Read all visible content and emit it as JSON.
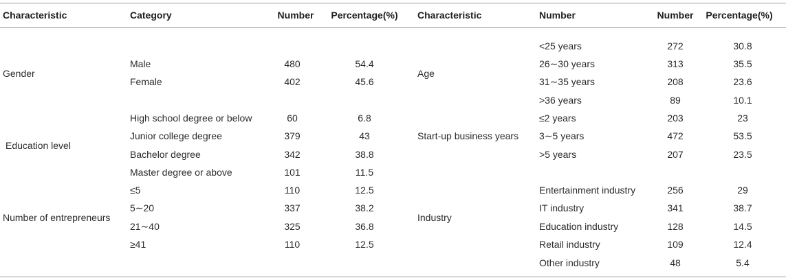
{
  "headers": {
    "left_characteristic": "Characteristic",
    "left_category": "Category",
    "left_number": "Number",
    "left_percentage": "Percentage(%)",
    "right_characteristic": "Characteristic",
    "right_category": "Number",
    "right_number": "Number",
    "right_percentage": "Percentage(%)"
  },
  "left": {
    "gender": {
      "label": "Gender",
      "rows": [
        {
          "category": "Male",
          "number": "480",
          "percentage": "54.4"
        },
        {
          "category": "Female",
          "number": "402",
          "percentage": "45.6"
        }
      ]
    },
    "education": {
      "label": "Education level",
      "rows": [
        {
          "category": "High school degree or below",
          "number": "60",
          "percentage": "6.8"
        },
        {
          "category": "Junior college degree",
          "number": "379",
          "percentage": "43"
        },
        {
          "category": "Bachelor degree",
          "number": "342",
          "percentage": "38.8"
        },
        {
          "category": "Master degree or above",
          "number": "101",
          "percentage": "11.5"
        }
      ]
    },
    "entrepreneurs": {
      "label": "Number of entrepreneurs",
      "rows": [
        {
          "category": "≤5",
          "number": "110",
          "percentage": "12.5"
        },
        {
          "category": "5∼20",
          "number": "337",
          "percentage": "38.2"
        },
        {
          "category": "21∼40",
          "number": "325",
          "percentage": "36.8"
        },
        {
          "category": "≥41",
          "number": "110",
          "percentage": "12.5"
        }
      ]
    }
  },
  "right": {
    "age": {
      "label": "Age",
      "rows": [
        {
          "category": "<25 years",
          "number": "272",
          "percentage": "30.8"
        },
        {
          "category": "26∼30 years",
          "number": "313",
          "percentage": "35.5"
        },
        {
          "category": "31∼35 years",
          "number": "208",
          "percentage": "23.6"
        },
        {
          "category": ">36 years",
          "number": "89",
          "percentage": "10.1"
        }
      ]
    },
    "startup": {
      "label": "Start-up business years",
      "rows": [
        {
          "category": "≤2 years",
          "number": "203",
          "percentage": "23"
        },
        {
          "category": "3∼5 years",
          "number": "472",
          "percentage": "53.5"
        },
        {
          "category": ">5 years",
          "number": "207",
          "percentage": "23.5"
        }
      ]
    },
    "industry": {
      "label": "Industry",
      "rows": [
        {
          "category": "Entertainment industry",
          "number": "256",
          "percentage": "29"
        },
        {
          "category": "IT industry",
          "number": "341",
          "percentage": "38.7"
        },
        {
          "category": "Education industry",
          "number": "128",
          "percentage": "14.5"
        },
        {
          "category": "Retail industry",
          "number": "109",
          "percentage": "12.4"
        },
        {
          "category": "Other industry",
          "number": "48",
          "percentage": "5.4"
        }
      ]
    }
  }
}
